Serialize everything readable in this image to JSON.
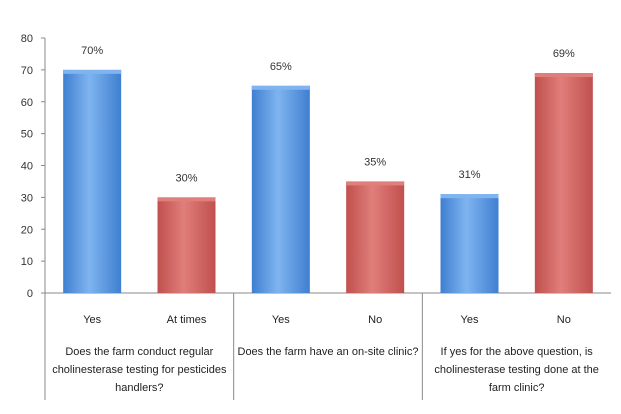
{
  "chart_data": {
    "type": "bar",
    "ylim": [
      0,
      80
    ],
    "yticks": [
      "0",
      "10",
      "20",
      "30",
      "40",
      "50",
      "60",
      "70",
      "80"
    ],
    "grid": false,
    "legend": "none",
    "groups": [
      {
        "question_lines": [
          "Does the farm conduct regular",
          "cholinesterase testing for pesticides",
          "handlers?"
        ],
        "bars": [
          {
            "category": "Yes",
            "value": 70,
            "label": "70%",
            "color": "blue"
          },
          {
            "category": "At times",
            "value": 30,
            "label": "30%",
            "color": "red"
          }
        ]
      },
      {
        "question_lines": [
          "Does the farm have an on-site clinic?"
        ],
        "bars": [
          {
            "category": "Yes",
            "value": 65,
            "label": "65%",
            "color": "blue"
          },
          {
            "category": "No",
            "value": 35,
            "label": "35%",
            "color": "red"
          }
        ]
      },
      {
        "question_lines": [
          "If yes for the above question, is",
          "cholinesterase testing done at the",
          "farm clinic?"
        ],
        "bars": [
          {
            "category": "Yes",
            "value": 31,
            "label": "31%",
            "color": "blue"
          },
          {
            "category": "No",
            "value": 69,
            "label": "69%",
            "color": "red"
          }
        ]
      }
    ],
    "colors": {
      "blue": "#3f7fd0",
      "blue_top": "#7fb4f0",
      "red": "#c0504d",
      "red_top": "#e07e7b"
    }
  }
}
